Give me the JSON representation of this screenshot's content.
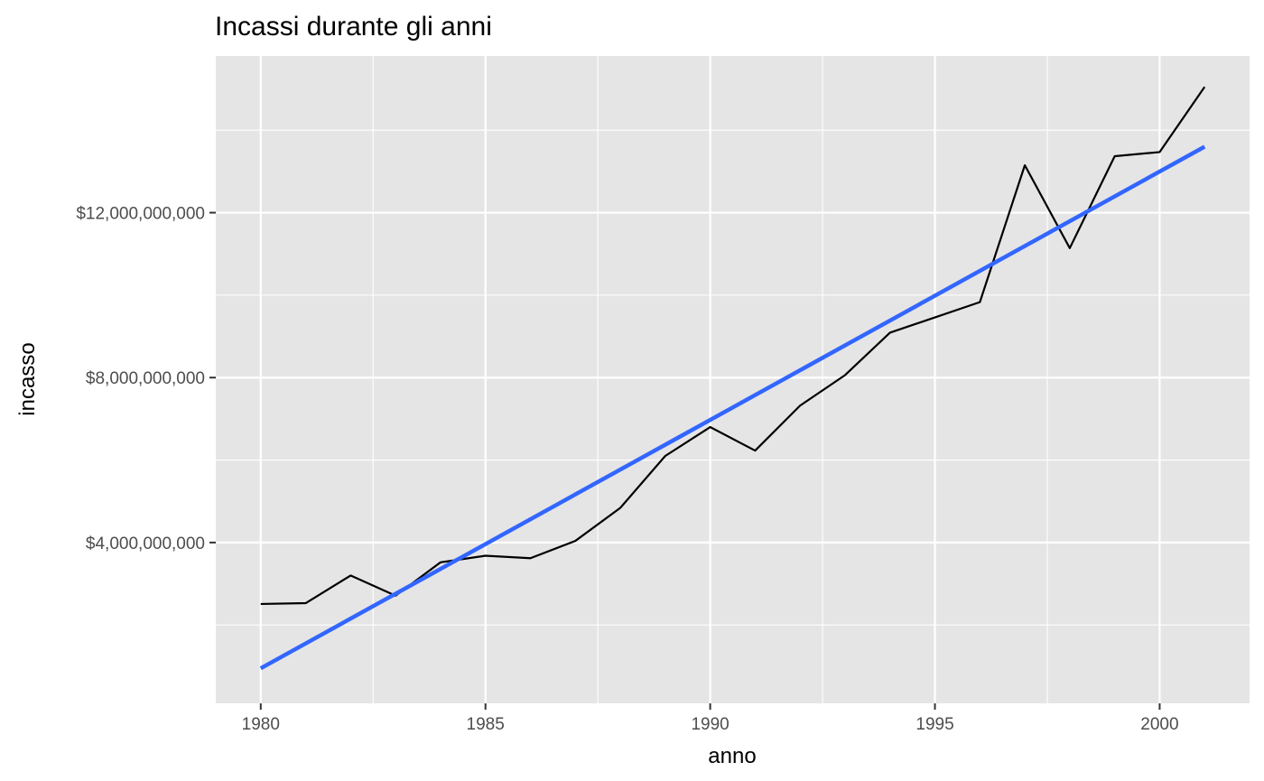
{
  "chart_data": {
    "type": "line",
    "title": "Incassi durante gli anni",
    "xlabel": "anno",
    "ylabel": "incasso",
    "xlim": [
      1979,
      2002
    ],
    "ylim": [
      100000000,
      15800000000
    ],
    "x_ticks": [
      1980,
      1985,
      1990,
      1995,
      2000
    ],
    "x_tick_labels": [
      "1980",
      "1985",
      "1990",
      "1995",
      "2000"
    ],
    "y_ticks": [
      4000000000,
      8000000000,
      12000000000
    ],
    "y_tick_labels": [
      "$4,000,000,000",
      "$8,000,000,000",
      "$12,000,000,000"
    ],
    "grid": true,
    "background": "#e5e5e5",
    "series": [
      {
        "style": "line",
        "color": "#000000",
        "x": [
          1980,
          1981,
          1982,
          1983,
          1984,
          1985,
          1986,
          1987,
          1988,
          1989,
          1990,
          1991,
          1992,
          1993,
          1994,
          1995,
          1996,
          1997,
          1998,
          1999,
          2000,
          2001
        ],
        "y": [
          2510000000,
          2530000000,
          3200000000,
          2710000000,
          3520000000,
          3680000000,
          3620000000,
          4040000000,
          4840000000,
          6100000000,
          6800000000,
          6230000000,
          7320000000,
          8060000000,
          9090000000,
          9460000000,
          9830000000,
          13150000000,
          11140000000,
          13370000000,
          13470000000,
          15050000000
        ]
      },
      {
        "style": "trend-line",
        "color": "#3366ff",
        "x": [
          1980,
          2001
        ],
        "y": [
          950000000,
          13600000000
        ]
      }
    ]
  }
}
